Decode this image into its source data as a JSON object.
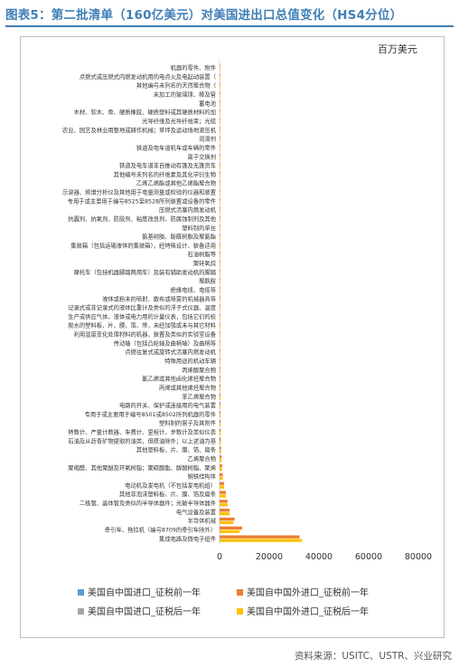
{
  "title": "图表5：第二批清单（160亿美元）对美国进出口总值变化（HS4分位）",
  "unit": "百万美元",
  "source": "资料来源：USITC、USTR、兴业研究",
  "colors": {
    "title": "#3f7fb6",
    "s1": "#5b9bd5",
    "s2": "#ed7d31",
    "s3": "#a5a5a5",
    "s4": "#ffc000"
  },
  "chart_data": {
    "type": "bar",
    "orientation": "horizontal",
    "stacked": true,
    "xlim": [
      0,
      80000
    ],
    "xticks": [
      0,
      20000,
      40000,
      60000,
      80000
    ],
    "xtick_labels": [
      "0",
      "20000",
      "40000",
      "60000",
      "80000"
    ],
    "legend_position": "bottom",
    "categories": [
      "机器的零件、附件",
      "点燃式或压燃式内燃发动机用的电点火及电起动装置（",
      "其他编号未列名的天然聚合物（",
      "未加工的玻璃球、棒及管",
      "蓄电池",
      "木材、软木、骨、硬质橡胶、硬质塑料或其硬质材料的加",
      "光导纤维及光导纤维束；光缆",
      "农业、园艺及林业用整地或耕作机械；草坪及运动场地滚压机",
      "润滑剂",
      "铁道及电车道机车或车辆的零件",
      "离子交换剂",
      "铁道及电车道非自推动有篷及无篷货车",
      "其他编号未列名的纤维素及其化学衍生物",
      "乙烯乙烯酯或其他乙烯酯聚合物",
      "示波器、频谱分析仪及其他用于电量测量或检验的仪器和装置",
      "专用于或主要用于编号8525至8528所列装置或设备的零件",
      "压燃式活塞内燃发动机",
      "抗震剂、抗氧剂、防胶剂、粘度改良剂、防腐蚀制剂及其他",
      "塑料制的单丝",
      "氨基树脂、酚醛树脂及聚氨酯",
      "集装箱（包括运输液体的集装箱），经特殊设计、装备适用",
      "石油树脂等",
      "聚硅氧烷",
      "摩托车（包括机器脚踏两用车）及装有辅助发动机的脚踏",
      "聚酰胺",
      "绝缘电线、电缆等",
      "液体或粉末的喷射、散布或喷雾的机械器具等",
      "记录式或非记录式的液体比重计及类似的浮子式仪器、温度",
      "生产或供应气体、液体或电力用的计量仪表，包括它们的校",
      "脱水的塑料板、片、膜、箔、带，未经加强或未与其它材料",
      "利用温度变化处理材料的机器、装置及类似的实验室设备",
      "传动轴（包括凸轮轴及曲柄轴）及曲柄等",
      "点燃往复式或旋转式活塞内燃发动机",
      "特殊用途的机动车辆",
      "丙烯酸聚合物",
      "氯乙烯或其他卤化烯烃聚合物",
      "丙烯或其他烯烃聚合物",
      "苯乙烯聚合物",
      "电路的开关、保护或连接用的电气装置",
      "专用于或主要用于编号8501或8502所列机器的零件",
      "塑料制的管子及其附件",
      "转数计、产量计数器、车费计、里程计、步数计及类似仪表",
      "石油及从沥青矿物提取的油类，但原油除外；以上述油为基",
      "其他塑料板、片、膜、箔、扁条",
      "乙烯聚合物",
      "聚缩醛、其他聚醚及环氧树脂；聚碳酸酯、醇酸树脂、聚烯",
      "钢铁结构体",
      "电动机及发电机（不包括发电机组）",
      "其他非泡沫塑料板、片、膜、箔及扁条",
      "二极管、晶体管及类似的半导体器件；光敏半导体器件",
      "电气设备及装置",
      "半导体机械",
      "牵引车、拖拉机（编号8709的牵引车除外）",
      "集成电路及微电子组件"
    ],
    "series": [
      {
        "name": "美国自中国进口_征税前一年",
        "values": [
          2,
          2,
          2,
          2,
          3,
          3,
          4,
          4,
          5,
          5,
          6,
          6,
          7,
          7,
          8,
          8,
          9,
          9,
          10,
          10,
          11,
          11,
          12,
          12,
          13,
          13,
          14,
          14,
          15,
          15,
          16,
          16,
          17,
          17,
          18,
          18,
          19,
          19,
          20,
          20,
          22,
          24,
          26,
          28,
          30,
          32,
          34,
          36,
          40,
          45,
          50,
          55,
          60,
          200
        ]
      },
      {
        "name": "美国自中国外进口_征税前一年",
        "values": [
          10,
          12,
          14,
          16,
          18,
          20,
          22,
          25,
          28,
          30,
          35,
          40,
          45,
          50,
          55,
          60,
          65,
          70,
          75,
          80,
          90,
          100,
          110,
          120,
          130,
          140,
          150,
          160,
          170,
          180,
          200,
          220,
          240,
          260,
          280,
          300,
          320,
          340,
          360,
          380,
          420,
          460,
          500,
          600,
          800,
          1000,
          1300,
          1800,
          2500,
          3200,
          4000,
          6000,
          9000,
          32000
        ]
      },
      {
        "name": "美国自中国进口_征税后一年",
        "values": [
          2,
          2,
          2,
          2,
          3,
          3,
          4,
          4,
          5,
          5,
          6,
          6,
          7,
          7,
          8,
          8,
          9,
          9,
          10,
          10,
          11,
          11,
          12,
          12,
          13,
          13,
          14,
          14,
          15,
          15,
          16,
          16,
          17,
          17,
          18,
          18,
          19,
          19,
          20,
          20,
          22,
          24,
          26,
          28,
          30,
          32,
          34,
          36,
          40,
          45,
          50,
          55,
          60,
          200
        ]
      },
      {
        "name": "美国自中国外进口_征税后一年",
        "values": [
          10,
          12,
          14,
          16,
          18,
          20,
          22,
          25,
          28,
          30,
          35,
          40,
          45,
          50,
          55,
          60,
          65,
          70,
          75,
          80,
          90,
          100,
          110,
          120,
          130,
          140,
          150,
          160,
          170,
          180,
          200,
          220,
          240,
          260,
          280,
          300,
          320,
          340,
          360,
          380,
          420,
          460,
          500,
          600,
          800,
          1000,
          1300,
          1800,
          2500,
          3200,
          4000,
          5500,
          8000,
          33000
        ]
      }
    ]
  }
}
